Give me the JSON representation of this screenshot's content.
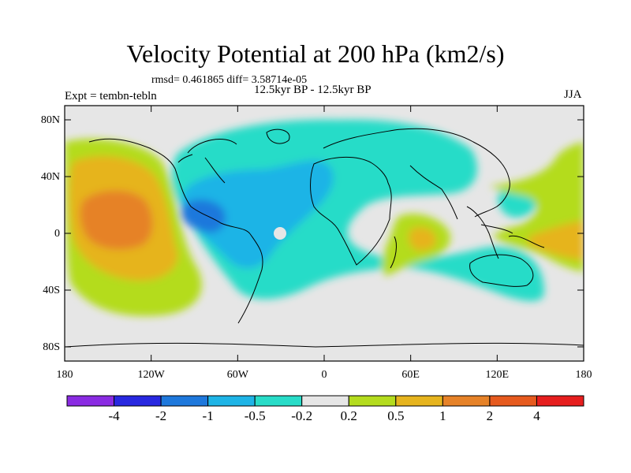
{
  "header": {
    "title": "Velocity Potential at 200 hPa (km2/s)",
    "stats": "rmsd= 0.461865 diff= 3.58714e-05",
    "period": "12.5kyr BP - 12.5kyr BP",
    "experiment": "Expt = tembn-tebln",
    "season": "JJA"
  },
  "chart_data": {
    "type": "filled-contour map",
    "title": "Velocity Potential at 200 hPa (km2/s)",
    "projection": "cylindrical equidistant",
    "lon_range": [
      -180,
      180
    ],
    "lat_range": [
      -90,
      90
    ],
    "x_ticks": [
      {
        "value": -180,
        "label": "180"
      },
      {
        "value": -120,
        "label": "120W"
      },
      {
        "value": -60,
        "label": "60W"
      },
      {
        "value": 0,
        "label": "0"
      },
      {
        "value": 60,
        "label": "60E"
      },
      {
        "value": 120,
        "label": "120E"
      },
      {
        "value": 180,
        "label": "180"
      }
    ],
    "y_ticks": [
      {
        "value": 80,
        "label": "80N"
      },
      {
        "value": 40,
        "label": "40N"
      },
      {
        "value": 0,
        "label": "0"
      },
      {
        "value": -40,
        "label": "40S"
      },
      {
        "value": -80,
        "label": "80S"
      }
    ],
    "contour_levels": [
      {
        "value": -4,
        "label": "-4"
      },
      {
        "value": -2,
        "label": "-2"
      },
      {
        "value": -1,
        "label": "-1"
      },
      {
        "value": -0.5,
        "label": "-0.5"
      },
      {
        "value": -0.2,
        "label": "-0.2"
      },
      {
        "value": 0.2,
        "label": "0.2"
      },
      {
        "value": 0.5,
        "label": "0.5"
      },
      {
        "value": 1,
        "label": "1"
      },
      {
        "value": 2,
        "label": "2"
      },
      {
        "value": 4,
        "label": "4"
      }
    ],
    "colorbar_colors": [
      "#8a2be2",
      "#2828e0",
      "#1e78dc",
      "#1eb4e6",
      "#28dcc8",
      "#e6e6e6",
      "#b4dc1e",
      "#e6b41e",
      "#e68228",
      "#e65a1e",
      "#e61e1e"
    ],
    "features": [
      {
        "lon": -148,
        "lat": 5,
        "value": 1.5,
        "description": "positive maximum over central Pacific"
      },
      {
        "lon": -82,
        "lat": 12,
        "value": -1.2,
        "description": "negative minimum over Caribbean / Central America"
      },
      {
        "lon": 48,
        "lat": -5,
        "value": 0.8,
        "description": "positive centre over western Indian Ocean"
      },
      {
        "lon": 165,
        "lat": -8,
        "value": 0.6,
        "description": "positive region over western Pacific"
      }
    ]
  }
}
